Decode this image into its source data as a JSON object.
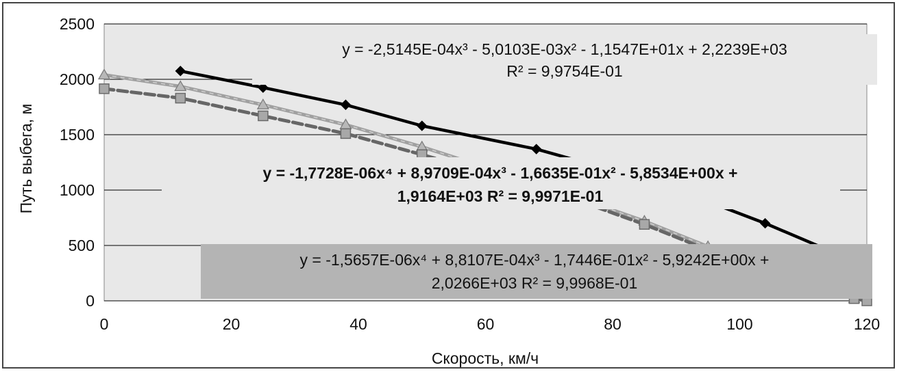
{
  "chart_data": {
    "type": "scatter",
    "xlabel": "Скорость, км/ч",
    "ylabel": "Путь выбега, м",
    "xlim": [
      0,
      120
    ],
    "ylim": [
      0,
      2500
    ],
    "x_ticks": [
      "0",
      "20",
      "40",
      "60",
      "80",
      "100",
      "120"
    ],
    "y_ticks": [
      "0",
      "500",
      "1000",
      "1500",
      "2000",
      "2500"
    ],
    "grid": "horizontal",
    "legend": "none",
    "series": [
      {
        "marker": "diamond",
        "color": "#000000",
        "x": [
          12,
          25,
          38,
          50,
          68,
          88,
          104,
          120
        ],
        "y": [
          2075,
          1925,
          1770,
          1580,
          1370,
          1050,
          700,
          310
        ]
      },
      {
        "marker": "triangle",
        "color": "#9a9a9a",
        "x": [
          0,
          12,
          25,
          38,
          50,
          70,
          85,
          95,
          118
        ],
        "y": [
          2040,
          1935,
          1770,
          1590,
          1390,
          1020,
          720,
          490,
          20
        ]
      },
      {
        "marker": "square",
        "color": "#888888",
        "x": [
          0,
          12,
          25,
          38,
          50,
          70,
          85,
          95,
          118,
          120
        ],
        "y": [
          1915,
          1830,
          1670,
          1510,
          1320,
          1000,
          690,
          460,
          20,
          0
        ]
      }
    ],
    "annotations": [
      {
        "text1": "y = -2,5145E-04x³ - 5,0103E-03x² - 1,1547E+01x + 2,2239E+03",
        "text2": "R² = 9,9754E-01"
      },
      {
        "text1": "y = -1,7728E-06x⁴ + 8,9709E-04x³ - 1,6635E-01x² - 5,8534E+00x +",
        "text2": "1,9164E+03 R² = 9,9971E-01"
      },
      {
        "text1": "y = -1,5657E-06x⁴ + 8,8107E-04x³ - 1,7446E-01x² - 5,9242E+00x +",
        "text2": "2,0266E+03  R² = 9,9968E-01"
      }
    ]
  }
}
